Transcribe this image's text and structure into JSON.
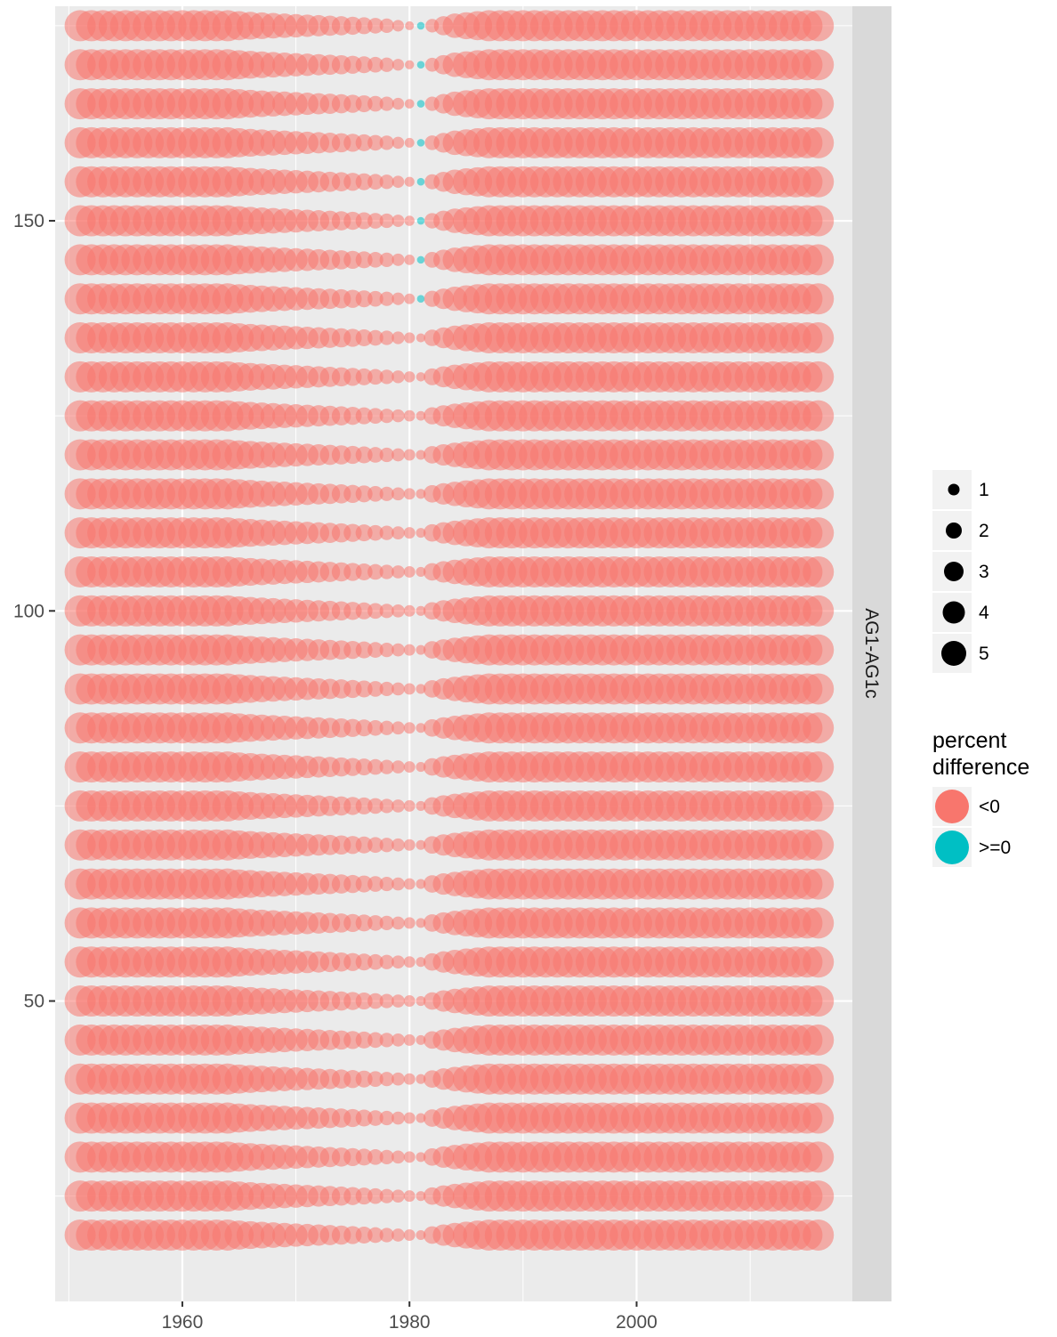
{
  "chart_data": {
    "type": "scatter",
    "title": "",
    "xlabel": "",
    "ylabel": "",
    "facet_label": "AG1-AG1c",
    "xlim": [
      1948.8,
      2019.0
    ],
    "ylim": [
      11.5,
      177.5
    ],
    "x_ticks": [
      1960,
      1980,
      2000
    ],
    "y_ticks": [
      50,
      100,
      150
    ],
    "x_range": [
      1951,
      2016
    ],
    "y_values": [
      20,
      25,
      30,
      35,
      40,
      45,
      50,
      55,
      60,
      65,
      70,
      75,
      80,
      85,
      90,
      95,
      100,
      105,
      110,
      115,
      120,
      125,
      130,
      135,
      140,
      145,
      150,
      155,
      160,
      165,
      170,
      175
    ],
    "size_profile": {
      "description": "Point size vs. year is similar for every row: large (~5) before 1965, shrinking toward ~1981, then large again after 1985. Rows above y=135 pass through zero near 1981 where the sign flips to >=0.",
      "max_size": 5,
      "min_size": 0.3
    },
    "positive_points": [
      {
        "x": 1981,
        "y": 140
      },
      {
        "x": 1981,
        "y": 145
      },
      {
        "x": 1981,
        "y": 150
      },
      {
        "x": 1981,
        "y": 155
      },
      {
        "x": 1981,
        "y": 160
      },
      {
        "x": 1981,
        "y": 165
      },
      {
        "x": 1981,
        "y": 170
      },
      {
        "x": 1981,
        "y": 175
      }
    ],
    "grid": true,
    "legend_position": "right",
    "legends": {
      "size": {
        "title": "",
        "entries": [
          "1",
          "2",
          "3",
          "4",
          "5"
        ]
      },
      "color": {
        "title_line1": "percent",
        "title_line2": "difference",
        "entries": [
          {
            "label": "<0",
            "color": "#F8766D"
          },
          {
            "label": ">=0",
            "color": "#00BFC4"
          }
        ]
      }
    }
  },
  "colors": {
    "panel_bg": "#EBEBEB",
    "strip_bg": "#D9D9D9",
    "grid": "#FFFFFF",
    "negative": "#F8766D",
    "positive": "#00BFC4",
    "legend_key_bg": "#F2F2F2"
  }
}
